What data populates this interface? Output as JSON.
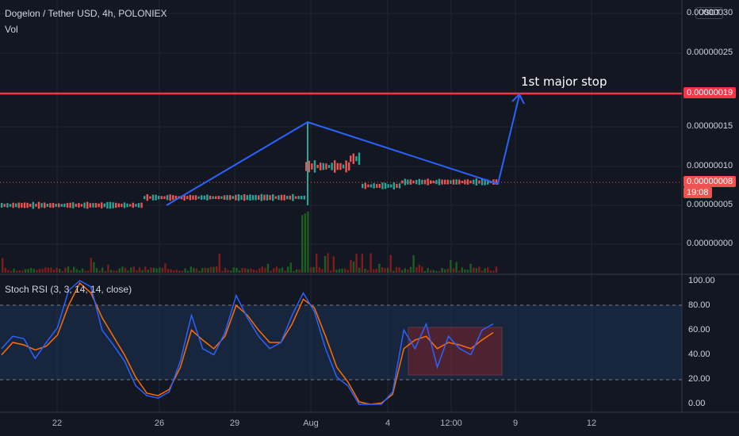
{
  "header": {
    "title": "Dogelon / Tether USD, 4h, POLONIEX",
    "volume_label": "Vol",
    "rsi_title": "Stoch RSI (3, 3, 14, 14, close)",
    "currency_badge": "USDT"
  },
  "annotation": {
    "text": "1st major stop"
  },
  "price_axis": {
    "labels": [
      "0.00000030",
      "0.00000025",
      "0.00000015",
      "0.00000010",
      "0.00000005",
      "0.00000000"
    ],
    "stop_badge": "0.00000019",
    "current_badge_price": "0.00000008",
    "current_badge_time": "19:08"
  },
  "rsi_axis": {
    "labels": [
      "100.00",
      "80.00",
      "60.00",
      "40.00",
      "20.00",
      "0.00"
    ]
  },
  "x_axis": {
    "labels": [
      "22",
      "26",
      "29",
      "Aug",
      "4",
      "12:00",
      "9",
      "12"
    ]
  },
  "colors": {
    "background": "#131722",
    "up": "#26a69a",
    "down": "#ef5350",
    "stop_line": "#f23645",
    "drawing": "#2962ff",
    "k_line": "#2962ff",
    "d_line": "#ff6d00",
    "rsi_band": "#1e3a5f"
  },
  "chart_data": [
    {
      "type": "candlestick",
      "title": "Dogelon / Tether USD, 4h, POLONIEX",
      "y_unit": "USDT",
      "ylim": [
        -3e-08,
        3.1e-07
      ],
      "x_labels": [
        "22",
        "26",
        "29",
        "Aug",
        "4",
        "12:00",
        "9",
        "12"
      ],
      "horizontal_lines": [
        {
          "label": "1st major stop",
          "value": 1.9e-07
        }
      ],
      "current_price": 8e-08,
      "trendline_drawing": [
        {
          "t": "26",
          "price": 5e-08
        },
        {
          "t": "Aug",
          "price": 1.58e-07
        },
        {
          "t": "12:00",
          "price": 8e-08
        },
        {
          "t": "9",
          "price": 1.93e-07
        }
      ],
      "series": [
        {
          "name": "price_segments",
          "segments": [
            {
              "from": "21",
              "to": "27",
              "price": 5e-08
            },
            {
              "from": "27",
              "to": "31",
              "price": 6e-08
            },
            {
              "from": "Aug",
              "to": "2",
              "price": 1e-07
            },
            {
              "from": "2",
              "to": "3",
              "price": 1.1e-07
            },
            {
              "from": "3",
              "to": "4",
              "price": 7.5e-08
            },
            {
              "from": "4",
              "to": "8",
              "price": 8e-08
            }
          ]
        }
      ]
    },
    {
      "type": "line",
      "title": "Stoch RSI (3, 3, 14, 14, close)",
      "ylim": [
        0,
        100
      ],
      "bands": [
        20,
        80
      ],
      "series": [
        {
          "name": "K",
          "values": [
            45,
            55,
            53,
            37,
            50,
            62,
            92,
            100,
            95,
            60,
            48,
            35,
            15,
            7,
            5,
            10,
            35,
            72,
            45,
            40,
            58,
            88,
            70,
            55,
            45,
            50,
            72,
            90,
            75,
            45,
            22,
            15,
            0,
            0,
            0,
            10,
            60,
            45,
            65,
            30,
            55,
            45,
            40,
            60,
            65
          ]
        },
        {
          "name": "D",
          "values": [
            40,
            50,
            48,
            44,
            47,
            56,
            80,
            98,
            90,
            70,
            55,
            40,
            22,
            9,
            7,
            12,
            30,
            60,
            52,
            45,
            55,
            80,
            72,
            60,
            50,
            50,
            65,
            85,
            78,
            55,
            30,
            18,
            2,
            0,
            1,
            8,
            45,
            52,
            55,
            45,
            50,
            48,
            45,
            52,
            58
          ]
        }
      ]
    }
  ]
}
